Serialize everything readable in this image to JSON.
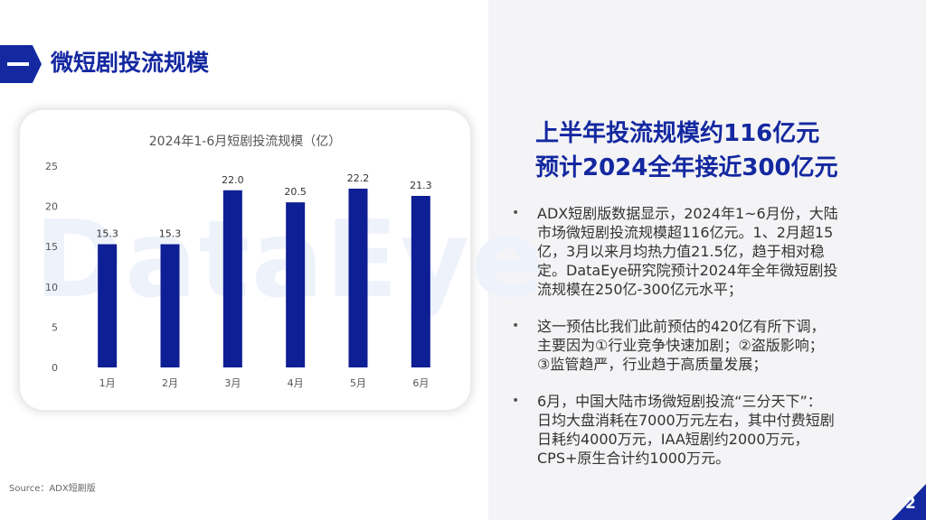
{
  "section": {
    "title": "微短剧投流规模"
  },
  "watermark": "DataEye",
  "chart_data": {
    "type": "bar",
    "title": "2024年1-6月短剧投流规模（亿）",
    "categories": [
      "1月",
      "2月",
      "3月",
      "4月",
      "5月",
      "6月"
    ],
    "values": [
      15.3,
      15.3,
      22.0,
      20.5,
      22.2,
      21.3
    ],
    "data_labels": [
      "15.3",
      "15.3",
      "22.0",
      "20.5",
      "22.2",
      "21.3"
    ],
    "yticks": [
      0,
      5,
      10,
      15,
      20,
      25
    ],
    "ylim": [
      0,
      25
    ],
    "grid": false,
    "legend": "none",
    "bar_color": "#0e1e94"
  },
  "right": {
    "headline_lines": [
      "上半年投流规模约116亿元",
      "预计2024全年接近300亿元"
    ],
    "bullet_symbol": "•",
    "bullets": [
      [
        "ADX短剧版数据显示，2024年1~6月份，大陆",
        "市场微短剧投流规模超116亿元。1、2月超15",
        "亿，3月以来月均热力值21.5亿，趋于相对稳",
        "定。DataEye研究院预计2024年全年微短剧投",
        "流规模在250亿-300亿元水平；"
      ],
      [
        "这一预估比我们此前预估的420亿有所下调，",
        "主要因为①行业竞争快速加剧；②盗版影响；",
        "③监管趋严，行业趋于高质量发展；"
      ],
      [
        "6月，中国大陆市场微短剧投流“三分天下”：",
        "日均大盘消耗在7000万元左右，其中付费短剧",
        "日耗约4000万元，IAA短剧约2000万元，",
        "CPS+原生合计约1000万元。"
      ]
    ]
  },
  "footer": {
    "source": "Source：ADX短剧版",
    "page_number": "2"
  },
  "colors": {
    "brand": "#1428a0",
    "panel": "#f4f4f6"
  }
}
